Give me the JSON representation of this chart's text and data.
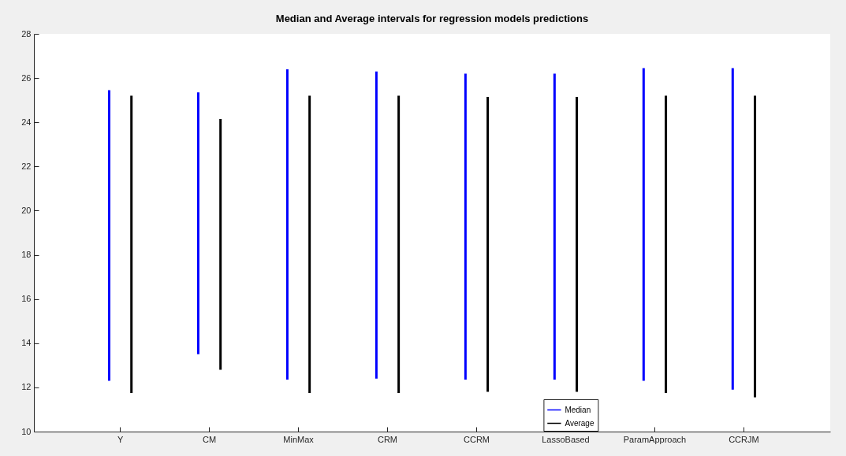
{
  "chart_data": {
    "type": "bar",
    "title": "Median and Average intervals for regression models predictions",
    "categories": [
      "Y",
      "CM",
      "MinMax",
      "CRM",
      "CCRM",
      "LassoBased",
      "ParamApproach",
      "CCRJM"
    ],
    "series": [
      {
        "name": "Median",
        "color": "#0000ff",
        "base": [
          12.3,
          13.5,
          12.35,
          12.4,
          12.35,
          12.35,
          12.3,
          11.9
        ],
        "values": [
          13.15,
          11.85,
          14.05,
          13.9,
          13.85,
          13.85,
          14.15,
          14.55
        ]
      },
      {
        "name": "Average",
        "color": "#000000",
        "base": [
          11.75,
          12.8,
          11.75,
          11.75,
          11.8,
          11.8,
          11.75,
          11.55
        ],
        "values": [
          13.45,
          11.35,
          13.45,
          13.45,
          13.35,
          13.35,
          13.45,
          13.65
        ]
      }
    ],
    "ylim": [
      10,
      28
    ],
    "yticks": [
      10,
      12,
      14,
      16,
      18,
      20,
      22,
      24,
      26,
      28
    ],
    "legend": "bottom",
    "grid": false
  }
}
